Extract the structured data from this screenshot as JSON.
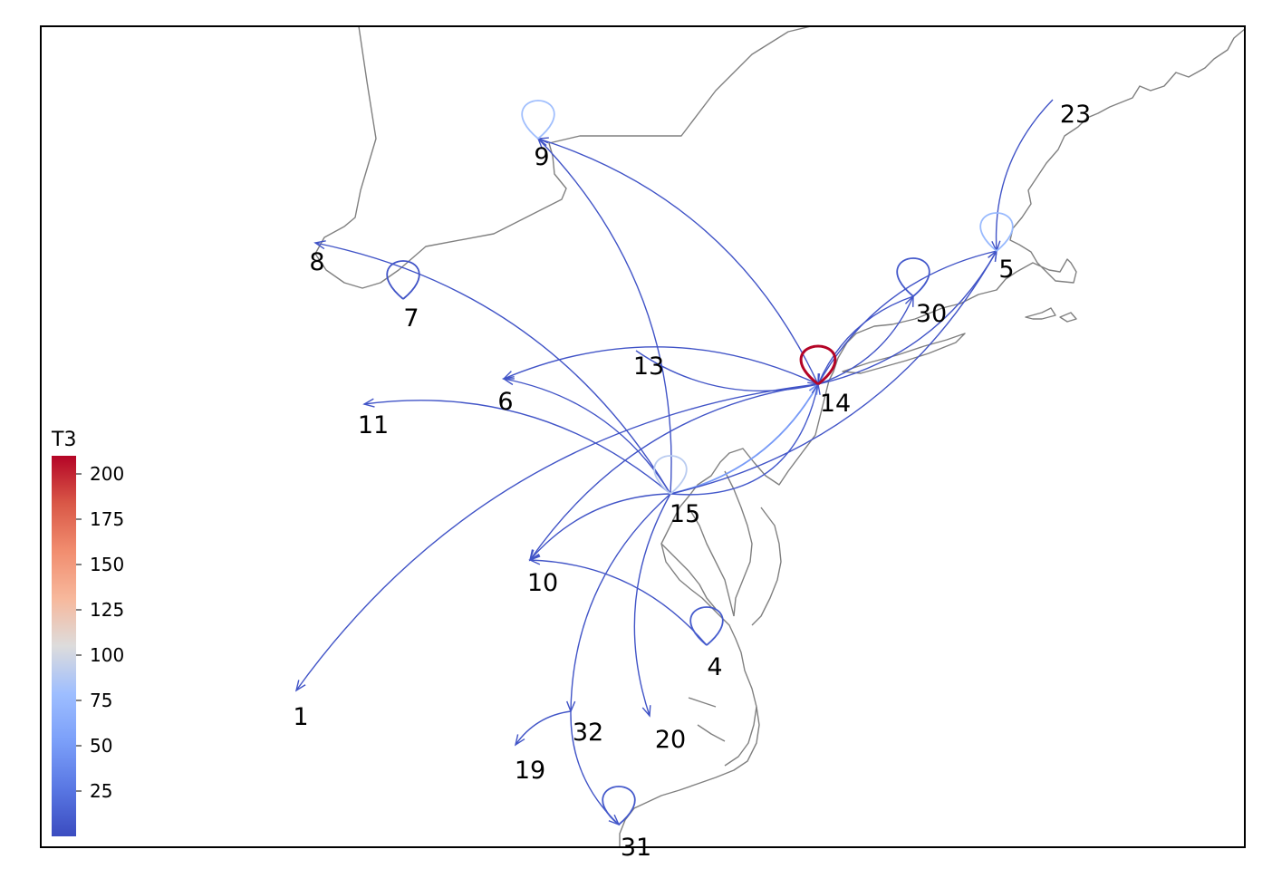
{
  "colorbar": {
    "title": "T3",
    "min": 0,
    "max": 210,
    "ticks": [
      25,
      50,
      75,
      100,
      125,
      150,
      175,
      200
    ]
  },
  "nodes": [
    {
      "id": "1",
      "label": "1"
    },
    {
      "id": "4",
      "label": "4"
    },
    {
      "id": "5",
      "label": "5"
    },
    {
      "id": "6",
      "label": "6"
    },
    {
      "id": "7",
      "label": "7"
    },
    {
      "id": "8",
      "label": "8"
    },
    {
      "id": "9",
      "label": "9"
    },
    {
      "id": "10",
      "label": "10"
    },
    {
      "id": "11",
      "label": "11"
    },
    {
      "id": "13",
      "label": "13"
    },
    {
      "id": "14",
      "label": "14"
    },
    {
      "id": "15",
      "label": "15"
    },
    {
      "id": "19",
      "label": "19"
    },
    {
      "id": "20",
      "label": "20"
    },
    {
      "id": "23",
      "label": "23"
    },
    {
      "id": "30",
      "label": "30"
    },
    {
      "id": "31",
      "label": "31"
    },
    {
      "id": "32",
      "label": "32"
    }
  ],
  "loops": [
    {
      "node": "9",
      "value": 80
    },
    {
      "node": "7",
      "value": 5
    },
    {
      "node": "5",
      "value": 75
    },
    {
      "node": "30",
      "value": 8
    },
    {
      "node": "14",
      "value": 210
    },
    {
      "node": "15",
      "value": 90
    },
    {
      "node": "4",
      "value": 10
    },
    {
      "node": "31",
      "value": 8
    }
  ],
  "edges": [
    {
      "from": "14",
      "to": "9",
      "value": 5
    },
    {
      "from": "15",
      "to": "9",
      "value": 5
    },
    {
      "from": "15",
      "to": "8",
      "value": 5
    },
    {
      "from": "14",
      "to": "6",
      "value": 5
    },
    {
      "from": "15",
      "to": "6",
      "value": 5
    },
    {
      "from": "15",
      "to": "11",
      "value": 5
    },
    {
      "from": "13",
      "to": "14",
      "value": 5
    },
    {
      "from": "14",
      "to": "1",
      "value": 5
    },
    {
      "from": "14",
      "to": "10",
      "value": 5
    },
    {
      "from": "15",
      "to": "10",
      "value": 5
    },
    {
      "from": "4",
      "to": "10",
      "value": 5
    },
    {
      "from": "15",
      "to": "14",
      "value": 50
    },
    {
      "from": "15",
      "to": "14",
      "value": 8
    },
    {
      "from": "15",
      "to": "5",
      "value": 5
    },
    {
      "from": "14",
      "to": "5",
      "value": 5
    },
    {
      "from": "5",
      "to": "14",
      "value": 5
    },
    {
      "from": "14",
      "to": "30",
      "value": 5
    },
    {
      "from": "30",
      "to": "14",
      "value": 5
    },
    {
      "from": "23",
      "to": "5",
      "value": 5
    },
    {
      "from": "15",
      "to": "32",
      "value": 5
    },
    {
      "from": "15",
      "to": "20",
      "value": 5
    },
    {
      "from": "32",
      "to": "19",
      "value": 5
    },
    {
      "from": "32",
      "to": "31",
      "value": 5
    }
  ]
}
